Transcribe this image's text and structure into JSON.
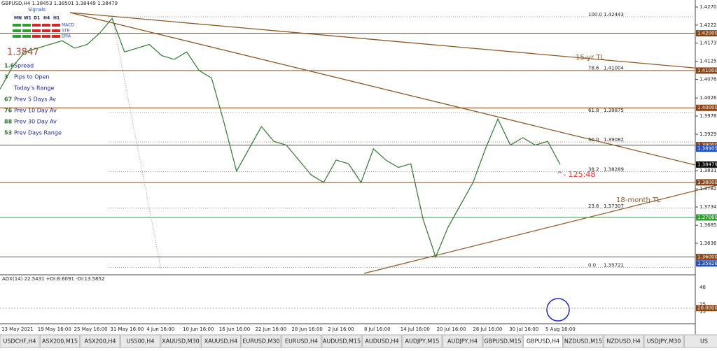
{
  "window_title": "GBPUSD,H4  1.38453 1.38501 1.38449 1.38479",
  "overlay": {
    "signals": "Signals",
    "timeframes": [
      "MN",
      "W1",
      "D1",
      "H4",
      "H1"
    ],
    "indicators": [
      "MACD",
      "STR",
      "EMA"
    ],
    "big_price": "1.3847",
    "stats": [
      {
        "value": "1.6",
        "label": "Spread"
      },
      {
        "value": "3",
        "label": "Pips to Open"
      },
      {
        "label": "Today's Range"
      },
      {
        "value": "67",
        "label": "Prev 5 Days Av"
      },
      {
        "value": "76",
        "label": "Prev 10 Day Av"
      },
      {
        "value": "88",
        "label": "Prev 30 Day Av"
      },
      {
        "value": "53",
        "label": "Prev Days Range"
      }
    ]
  },
  "price_chart": {
    "ylim": [
      1.3554,
      1.42893
    ],
    "yticks": [
      1.42705,
      1.4222,
      1.41735,
      1.4125,
      1.40765,
      1.40265,
      1.3978,
      1.3929,
      1.38315,
      1.37825,
      1.3734,
      1.3685,
      1.36365
    ],
    "price_labels": [
      {
        "value": 1.42,
        "label": "1.42000",
        "color": "#8b4513",
        "line": true
      },
      {
        "value": 1.41,
        "label": "1.41000",
        "color": "#8b4513",
        "line": true
      },
      {
        "value": 1.4,
        "label": "1.40000",
        "color": "#8b4513",
        "line": true
      },
      {
        "value": 1.39,
        "label": "1.39000",
        "color": "#8b4513",
        "line": true
      },
      {
        "value": 1.38905,
        "label": "1.38905",
        "color": "#1e50c8",
        "line": false
      },
      {
        "value": 1.38479,
        "label": "1.38479",
        "color": "#000000",
        "line": false
      },
      {
        "value": 1.38,
        "label": "1.38000",
        "color": "#8b4513",
        "line": true
      },
      {
        "value": 1.3706,
        "label": "1.37060",
        "color": "#2ca02c",
        "line": true
      },
      {
        "value": 1.36,
        "label": "1.36000",
        "color": "#8b4513",
        "line": true
      },
      {
        "value": 1.35826,
        "label": "1.35826",
        "color": "#1e50c8",
        "line": false
      }
    ],
    "fib": [
      {
        "level": "100.0",
        "price": 1.42443
      },
      {
        "level": "78.6",
        "price": 1.41004
      },
      {
        "level": "61.8",
        "price": 1.39875
      },
      {
        "level": "50.0",
        "price": 1.39082
      },
      {
        "level": "38.2",
        "price": 1.38289
      },
      {
        "level": "23.6",
        "price": 1.37307
      },
      {
        "level": "0.0",
        "price": 1.35721
      }
    ],
    "close": [
      1.405,
      1.411,
      1.415,
      1.416,
      1.417,
      1.418,
      1.416,
      1.417,
      1.42,
      1.424,
      1.415,
      1.416,
      1.417,
      1.414,
      1.413,
      1.415,
      1.41,
      1.408,
      1.396,
      1.383,
      1.389,
      1.395,
      1.391,
      1.39,
      1.386,
      1.382,
      1.38,
      1.386,
      1.385,
      1.38,
      1.389,
      1.386,
      1.384,
      1.385,
      1.37,
      1.36,
      1.368,
      1.374,
      1.38,
      1.389,
      1.397,
      1.39,
      1.392,
      1.39,
      1.391,
      1.38479
    ],
    "annotations": {
      "tl15": "15-yr TL",
      "tl18": "18-month TL",
      "countdown": "^- 125:48"
    }
  },
  "adx_panel": {
    "title": "ADX(14) 22.5431 +DI:8.6091 -DI:13.5852",
    "ylim": [
      0,
      62
    ],
    "yticks": [
      48,
      25,
      15
    ],
    "level": {
      "value": 20,
      "label": "20.0000"
    }
  },
  "dates": [
    "13 May 2021",
    "19 May 16:00",
    "25 May 16:00",
    "31 May 16:00",
    "4 Jun 16:00",
    "10 Jun 16:00",
    "16 Jun 16:00",
    "22 Jun 16:00",
    "28 Jun 16:00",
    "2 Jul 16:00",
    "8 Jul 16:00",
    "14 Jul 16:00",
    "20 Jul 16:00",
    "26 Jul 16:00",
    "30 Jul 16:00",
    "5 Aug 16:00"
  ],
  "tabs": [
    "USDCHF,H4",
    "ASX200,M15",
    "ASX200,H4",
    "US500,H4",
    "XAUUSD,M30",
    "XAUUSD,H4",
    "EURUSD,M30",
    "EURUSD,H4",
    "AUDUSD,M15",
    "AUDUSD,H4",
    "AUDJPY,M15",
    "AUDJPY,H4",
    "GBPUSD,M15",
    "GBPUSD,H4",
    "NZDUSD,M15",
    "NZDUSD,H4",
    "USDJPY,M30",
    "US"
  ],
  "active_tab": 13
}
